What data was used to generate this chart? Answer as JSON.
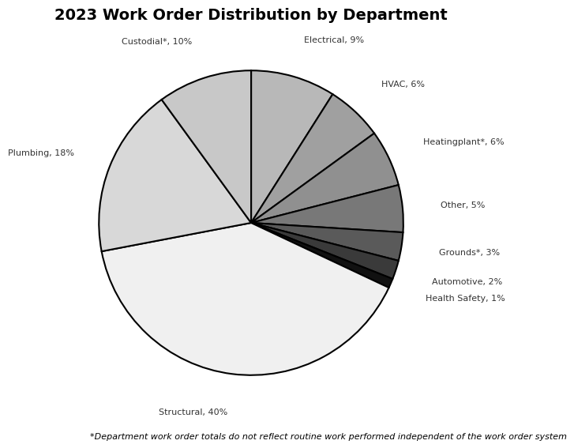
{
  "title": "2023 Work Order Distribution by Department",
  "footnote": "*Department work order totals do not reflect routine work performed independent of the work order system",
  "labels": [
    "Electrical, 9%",
    "HVAC, 6%",
    "Heatingplant*, 6%",
    "Other, 5%",
    "Grounds*, 3%",
    "Automotive, 2%",
    "Health Safety, 1%",
    "Structural, 40%",
    "Plumbing, 18%",
    "Custodial*, 10%"
  ],
  "values": [
    9,
    6,
    6,
    5,
    3,
    2,
    1,
    40,
    18,
    10
  ],
  "colors": [
    "#b8b8b8",
    "#a0a0a0",
    "#909090",
    "#787878",
    "#5a5a5a",
    "#3a3a3a",
    "#111111",
    "#f0f0f0",
    "#d8d8d8",
    "#c8c8c8"
  ],
  "edge_color": "#000000",
  "edge_width": 1.5,
  "startangle": 90,
  "background_color": "#ffffff",
  "title_fontsize": 14,
  "label_fontsize": 8,
  "footnote_fontsize": 8
}
